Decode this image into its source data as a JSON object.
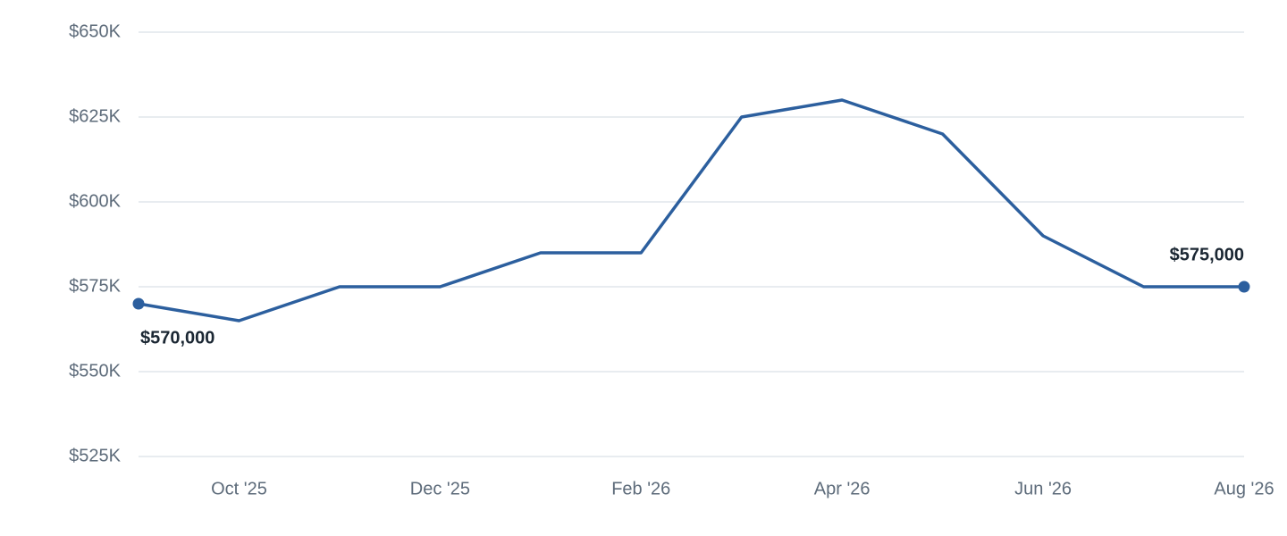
{
  "chart_data": {
    "type": "line",
    "categories": [
      null,
      "Oct '25",
      null,
      "Dec '25",
      null,
      "Feb '26",
      null,
      "Apr '26",
      null,
      "Jun '26",
      null,
      "Aug '26"
    ],
    "values": [
      570000,
      565000,
      575000,
      575000,
      585000,
      585000,
      625000,
      630000,
      620000,
      590000,
      575000,
      575000
    ],
    "value_labels": [
      "$570,000",
      null,
      null,
      null,
      null,
      null,
      null,
      null,
      null,
      null,
      null,
      "$575,000"
    ],
    "color": "#2c5f9e",
    "ylim": [
      525000,
      650000
    ],
    "yticks": [
      {
        "value": 525000,
        "label": "$525K"
      },
      {
        "value": 550000,
        "label": "$550K"
      },
      {
        "value": 575000,
        "label": "$575K"
      },
      {
        "value": 600000,
        "label": "$600K"
      },
      {
        "value": 625000,
        "label": "$625K"
      },
      {
        "value": 650000,
        "label": "$650K"
      }
    ],
    "grid": true
  }
}
